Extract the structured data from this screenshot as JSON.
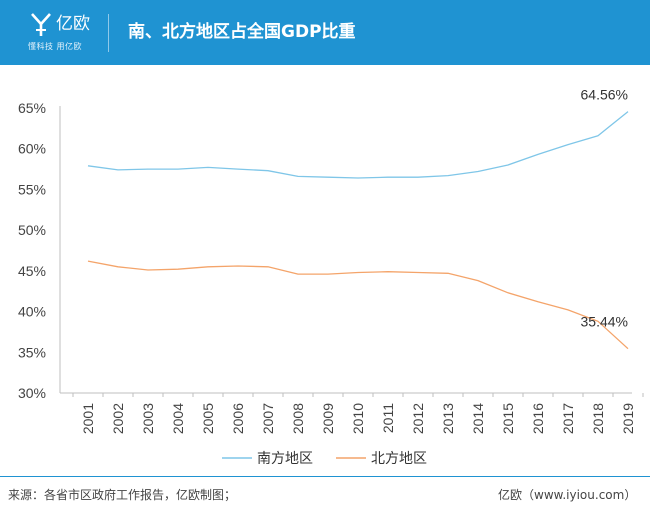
{
  "header": {
    "brand": "亿欧",
    "slogan": "懂科技 用亿欧",
    "title": "南、北方地区占全国GDP比重"
  },
  "colors": {
    "header_bg": "#1f93d2",
    "south": "#7fc6e8",
    "north": "#f4a46a"
  },
  "chart_data": {
    "type": "line",
    "title": "南、北方地区占全国GDP比重",
    "x": [
      "2001",
      "2002",
      "2003",
      "2004",
      "2005",
      "2006",
      "2007",
      "2008",
      "2009",
      "2010",
      "2011",
      "2012",
      "2013",
      "2014",
      "2015",
      "2016",
      "2017",
      "2018",
      "2019"
    ],
    "ylim": [
      30,
      65
    ],
    "yticks": [
      "30%",
      "35%",
      "40%",
      "45%",
      "50%",
      "55%",
      "60%",
      "65%"
    ],
    "ytick_values": [
      30,
      35,
      40,
      45,
      50,
      55,
      60,
      65
    ],
    "grid": false,
    "legend": "bottom",
    "series": [
      {
        "name": "南方地区",
        "values": [
          57.9,
          57.4,
          57.5,
          57.5,
          57.7,
          57.5,
          57.3,
          56.6,
          56.5,
          56.4,
          56.5,
          56.5,
          56.7,
          57.2,
          58.0,
          59.3,
          60.5,
          61.6,
          64.56
        ],
        "end_label": "64.56%"
      },
      {
        "name": "北方地区",
        "values": [
          46.2,
          45.5,
          45.1,
          45.2,
          45.5,
          45.6,
          45.5,
          44.6,
          44.6,
          44.8,
          44.9,
          44.8,
          44.7,
          43.8,
          42.3,
          41.2,
          40.2,
          38.8,
          35.44
        ],
        "end_label": "35.44%"
      }
    ]
  },
  "footer": {
    "source": "来源：各省市区政府工作报告，亿欧制图；",
    "credit": "亿欧（www.iyiou.com）"
  }
}
